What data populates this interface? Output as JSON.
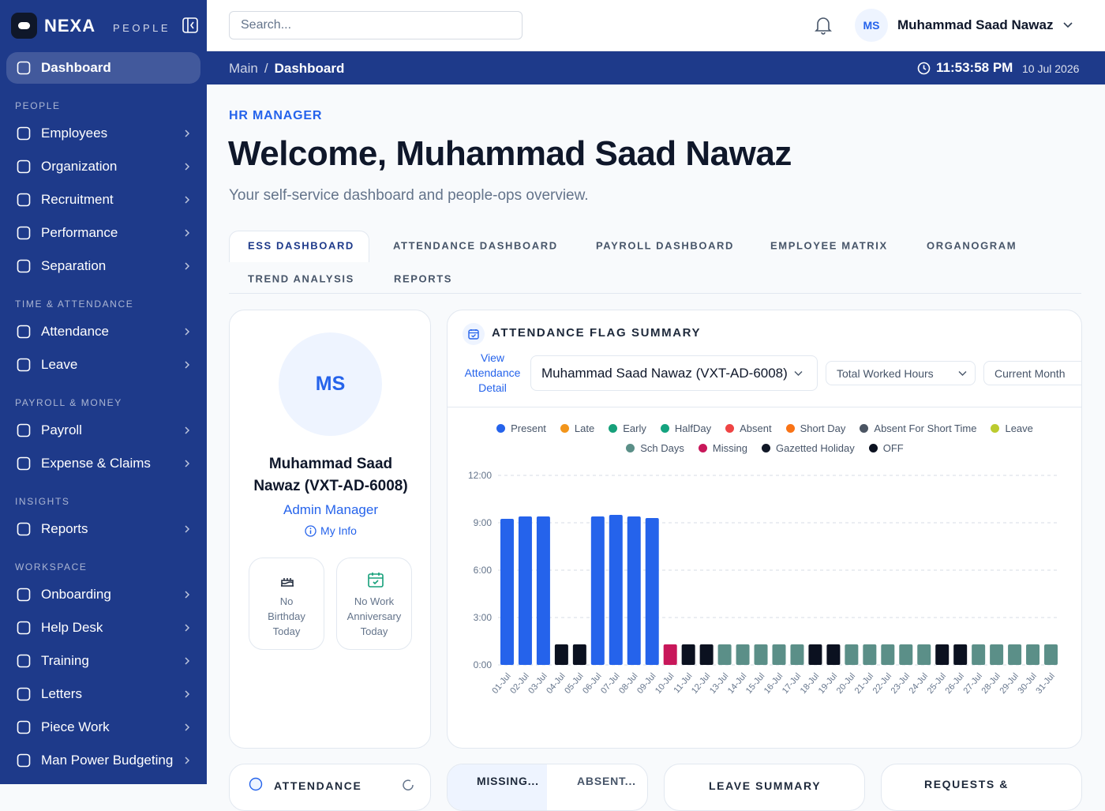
{
  "brand": {
    "name": "NEXA",
    "sub": "PEOPLE"
  },
  "sidebar": {
    "dashboard": "Dashboard",
    "sections": [
      {
        "title": "PEOPLE",
        "items": [
          "Employees",
          "Organization",
          "Recruitment",
          "Performance",
          "Separation"
        ]
      },
      {
        "title": "TIME & ATTENDANCE",
        "items": [
          "Attendance",
          "Leave"
        ]
      },
      {
        "title": "PAYROLL & MONEY",
        "items": [
          "Payroll",
          "Expense & Claims"
        ]
      },
      {
        "title": "INSIGHTS",
        "items": [
          "Reports"
        ]
      },
      {
        "title": "WORKSPACE",
        "items": [
          "Onboarding",
          "Help Desk",
          "Training",
          "Letters",
          "Piece Work",
          "Man Power Budgeting"
        ]
      }
    ]
  },
  "topbar": {
    "search": "Search...",
    "initials": "MS",
    "user": "Muhammad Saad Nawaz"
  },
  "breadcrumb": {
    "items": [
      "Main",
      "Dashboard"
    ],
    "separator": "/",
    "time": "11:53:58 PM",
    "date": "10 Jul 2026"
  },
  "header": {
    "role": "HR MANAGER",
    "title": "Welcome, Muhammad Saad Nawaz",
    "subtitle": "Your self-service dashboard and people-ops overview."
  },
  "tabs": [
    "ESS DASHBOARD",
    "ATTENDANCE DASHBOARD",
    "PAYROLL DASHBOARD",
    "EMPLOYEE MATRIX",
    "ORGANOGRAM",
    "TREND ANALYSIS",
    "REPORTS"
  ],
  "profile": {
    "initials": "MS",
    "name": "Muhammad Saad Nawaz (VXT-AD-6008)",
    "designation": "Admin Manager",
    "link": "My Info",
    "cards": [
      "No Birthday Today",
      "No Work Anniversary Today"
    ]
  },
  "panel": {
    "title": "ATTENDANCE FLAG SUMMARY",
    "link": "View Attendance Detail",
    "selects": [
      "Muhammad Saad Nawaz (VXT-AD-6008)",
      "Total Worked Hours",
      "Current Month"
    ]
  },
  "bottom_cards": [
    "ATTENDANCE",
    "MISSING...",
    "ABSENT...",
    "LEAVE SUMMARY",
    "REQUESTS &"
  ],
  "chart_data": {
    "type": "bar",
    "legend": [
      {
        "name": "Present",
        "color": "#2563eb"
      },
      {
        "name": "Late",
        "color": "#f2951b"
      },
      {
        "name": "Early",
        "color": "#16a07a"
      },
      {
        "name": "HalfDay",
        "color": "#14a37f"
      },
      {
        "name": "Absent",
        "color": "#ef4444"
      },
      {
        "name": "Short Day",
        "color": "#f97316"
      },
      {
        "name": "Absent For Short Time",
        "color": "#4b5563"
      },
      {
        "name": "Leave",
        "color": "#bccb2f"
      },
      {
        "name": "Sch Days",
        "color": "#5b8f88"
      },
      {
        "name": "Missing",
        "color": "#c8175a"
      },
      {
        "name": "Gazetted Holiday",
        "color": "#111827"
      },
      {
        "name": "OFF",
        "color": "#0b1120"
      }
    ],
    "categories": [
      "01-Jul",
      "02-Jul",
      "03-Jul",
      "04-Jul",
      "05-Jul",
      "06-Jul",
      "07-Jul",
      "08-Jul",
      "09-Jul",
      "10-Jul",
      "11-Jul",
      "12-Jul",
      "13-Jul",
      "14-Jul",
      "15-Jul",
      "16-Jul",
      "17-Jul",
      "18-Jul",
      "19-Jul",
      "20-Jul",
      "21-Jul",
      "22-Jul",
      "23-Jul",
      "24-Jul",
      "25-Jul",
      "26-Jul",
      "27-Jul",
      "28-Jul",
      "29-Jul",
      "30-Jul",
      "31-Jul"
    ],
    "values": [
      9.25,
      9.4,
      9.4,
      1.3,
      1.3,
      9.4,
      9.5,
      9.4,
      9.3,
      1.3,
      1.3,
      1.3,
      1.3,
      1.3,
      1.3,
      1.3,
      1.3,
      1.3,
      1.3,
      1.3,
      1.3,
      1.3,
      1.3,
      1.3,
      1.3,
      1.3,
      1.3,
      1.3,
      1.3,
      1.3,
      1.3
    ],
    "colors": [
      "#2563eb",
      "#2563eb",
      "#2563eb",
      "#0b1120",
      "#0b1120",
      "#2563eb",
      "#2563eb",
      "#2563eb",
      "#2563eb",
      "#c8175a",
      "#0b1120",
      "#0b1120",
      "#5b8f88",
      "#5b8f88",
      "#5b8f88",
      "#5b8f88",
      "#5b8f88",
      "#0b1120",
      "#0b1120",
      "#5b8f88",
      "#5b8f88",
      "#5b8f88",
      "#5b8f88",
      "#5b8f88",
      "#0b1120",
      "#0b1120",
      "#5b8f88",
      "#5b8f88",
      "#5b8f88",
      "#5b8f88",
      "#5b8f88"
    ],
    "ylim": [
      0,
      12
    ],
    "yticks": [
      {
        "value": 0,
        "label": "0:00"
      },
      {
        "value": 3,
        "label": "3:00"
      },
      {
        "value": 6,
        "label": "6:00"
      },
      {
        "value": 9,
        "label": "9:00"
      },
      {
        "value": 12,
        "label": "12:00"
      }
    ],
    "grid": true
  }
}
